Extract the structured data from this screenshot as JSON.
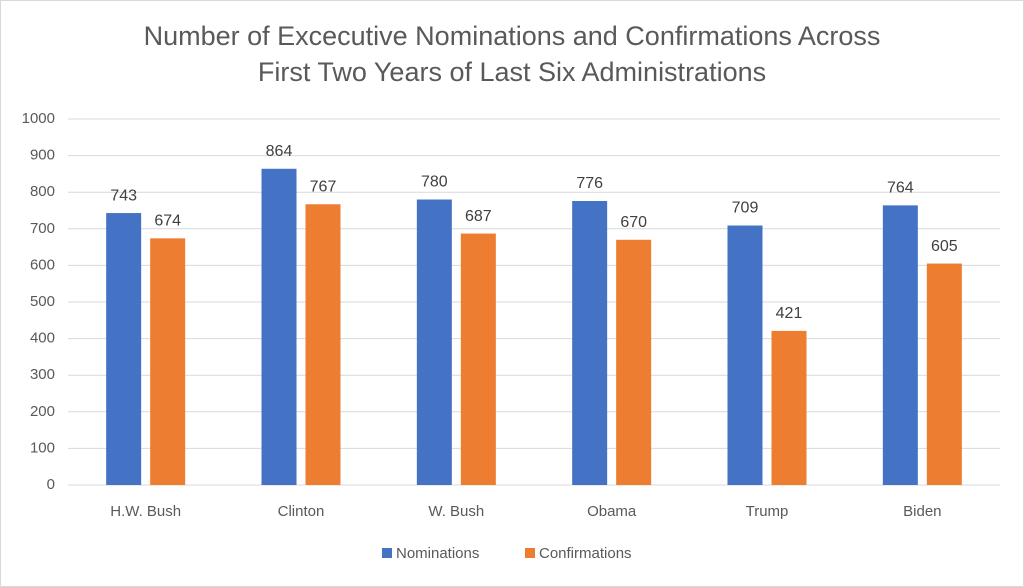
{
  "chart_data": {
    "type": "bar",
    "title": [
      "Number of Excecutive Nominations and Confirmations Across",
      "First Two Years of Last Six Administrations"
    ],
    "categories": [
      "H.W. Bush",
      "Clinton",
      "W. Bush",
      "Obama",
      "Trump",
      "Biden"
    ],
    "series": [
      {
        "name": "Nominations",
        "color": "#4472c4",
        "values": [
          743,
          864,
          780,
          776,
          709,
          764
        ]
      },
      {
        "name": "Confirmations",
        "color": "#ed7d31",
        "values": [
          674,
          767,
          687,
          670,
          421,
          605
        ]
      }
    ],
    "ylim": [
      0,
      1000
    ],
    "yticks": [
      0,
      100,
      200,
      300,
      400,
      500,
      600,
      700,
      800,
      900,
      1000
    ],
    "grid": true,
    "legend": "bottom"
  }
}
